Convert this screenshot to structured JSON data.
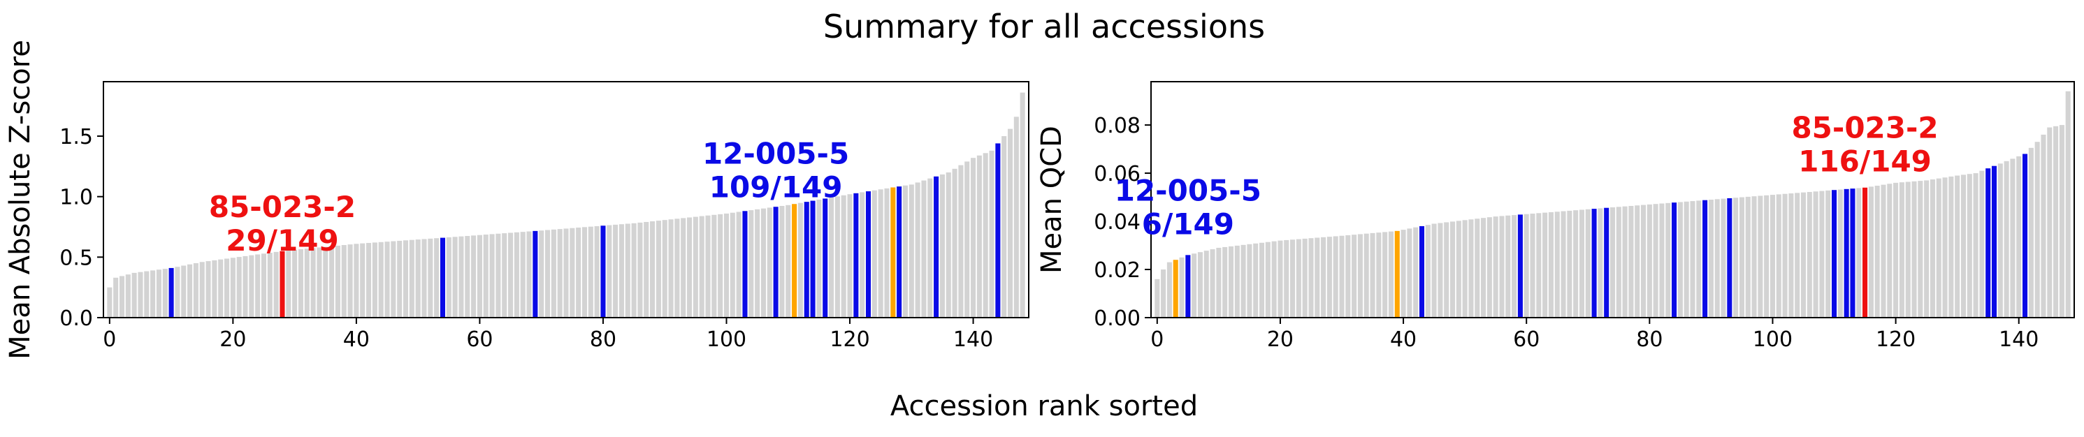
{
  "figure": {
    "title": "Summary for all accessions",
    "xlabel": "Accession rank sorted"
  },
  "colors": {
    "background_bar": "#d3d3d3",
    "highlight_red": "#ee1111",
    "highlight_blue": "#0a0ae6",
    "highlight_orange": "#ffa500",
    "axis": "#000000"
  },
  "chart_data": [
    {
      "type": "bar",
      "ylabel": "Mean Absolute Z-score",
      "xlim": [
        -1,
        149
      ],
      "ylim": [
        0,
        1.95
      ],
      "xticks": [
        0,
        20,
        40,
        60,
        80,
        100,
        120,
        140
      ],
      "yticks": [
        0.0,
        0.5,
        1.0,
        1.5
      ],
      "ytick_labels": [
        "0.0",
        "0.5",
        "1.0",
        "1.5"
      ],
      "n_bars": 149,
      "value_knots": [
        [
          0,
          0.25
        ],
        [
          1,
          0.33
        ],
        [
          4,
          0.37
        ],
        [
          10,
          0.41
        ],
        [
          15,
          0.46
        ],
        [
          28,
          0.55
        ],
        [
          40,
          0.61
        ],
        [
          54,
          0.66
        ],
        [
          70,
          0.72
        ],
        [
          85,
          0.78
        ],
        [
          100,
          0.86
        ],
        [
          110,
          0.93
        ],
        [
          120,
          1.02
        ],
        [
          130,
          1.1
        ],
        [
          136,
          1.2
        ],
        [
          140,
          1.32
        ],
        [
          143,
          1.38
        ],
        [
          145,
          1.5
        ],
        [
          146,
          1.56
        ],
        [
          147,
          1.66
        ],
        [
          148,
          1.86
        ]
      ],
      "highlights": [
        {
          "index": 28,
          "color": "red"
        },
        {
          "index": 10,
          "color": "blue"
        },
        {
          "index": 54,
          "color": "blue"
        },
        {
          "index": 69,
          "color": "blue"
        },
        {
          "index": 80,
          "color": "blue"
        },
        {
          "index": 103,
          "color": "blue"
        },
        {
          "index": 108,
          "color": "blue"
        },
        {
          "index": 111,
          "color": "orange"
        },
        {
          "index": 113,
          "color": "blue"
        },
        {
          "index": 114,
          "color": "blue"
        },
        {
          "index": 116,
          "color": "blue"
        },
        {
          "index": 121,
          "color": "blue"
        },
        {
          "index": 123,
          "color": "blue"
        },
        {
          "index": 127,
          "color": "orange"
        },
        {
          "index": 128,
          "color": "blue"
        },
        {
          "index": 134,
          "color": "blue"
        },
        {
          "index": 144,
          "color": "blue"
        }
      ],
      "annotations": [
        {
          "line1": "85-023-2",
          "line2": "29/149",
          "color": "red",
          "x": 28,
          "y": 0.6
        },
        {
          "line1": "12-005-5",
          "line2": "109/149",
          "color": "blue",
          "x": 108,
          "y": 1.04
        }
      ]
    },
    {
      "type": "bar",
      "ylabel": "Mean QCD",
      "xlim": [
        -1,
        149
      ],
      "ylim": [
        0,
        0.098
      ],
      "xticks": [
        0,
        20,
        40,
        60,
        80,
        100,
        120,
        140
      ],
      "yticks": [
        0.0,
        0.02,
        0.04,
        0.06,
        0.08
      ],
      "ytick_labels": [
        "0.00",
        "0.02",
        "0.04",
        "0.06",
        "0.08"
      ],
      "n_bars": 149,
      "value_knots": [
        [
          0,
          0.016
        ],
        [
          1,
          0.02
        ],
        [
          2,
          0.023
        ],
        [
          3,
          0.024
        ],
        [
          5,
          0.026
        ],
        [
          10,
          0.029
        ],
        [
          20,
          0.032
        ],
        [
          30,
          0.034
        ],
        [
          39,
          0.036
        ],
        [
          45,
          0.039
        ],
        [
          55,
          0.042
        ],
        [
          60,
          0.043
        ],
        [
          70,
          0.045
        ],
        [
          80,
          0.047
        ],
        [
          90,
          0.049
        ],
        [
          100,
          0.051
        ],
        [
          110,
          0.053
        ],
        [
          115,
          0.054
        ],
        [
          120,
          0.056
        ],
        [
          125,
          0.057
        ],
        [
          130,
          0.059
        ],
        [
          133,
          0.06
        ],
        [
          135,
          0.062
        ],
        [
          138,
          0.065
        ],
        [
          141,
          0.068
        ],
        [
          143,
          0.073
        ],
        [
          145,
          0.079
        ],
        [
          147,
          0.08
        ],
        [
          148,
          0.094
        ]
      ],
      "highlights": [
        {
          "index": 3,
          "color": "orange"
        },
        {
          "index": 5,
          "color": "blue"
        },
        {
          "index": 39,
          "color": "orange"
        },
        {
          "index": 43,
          "color": "blue"
        },
        {
          "index": 59,
          "color": "blue"
        },
        {
          "index": 71,
          "color": "blue"
        },
        {
          "index": 73,
          "color": "blue"
        },
        {
          "index": 84,
          "color": "blue"
        },
        {
          "index": 89,
          "color": "blue"
        },
        {
          "index": 93,
          "color": "blue"
        },
        {
          "index": 110,
          "color": "blue"
        },
        {
          "index": 112,
          "color": "blue"
        },
        {
          "index": 113,
          "color": "blue"
        },
        {
          "index": 115,
          "color": "red"
        },
        {
          "index": 135,
          "color": "blue"
        },
        {
          "index": 136,
          "color": "blue"
        },
        {
          "index": 141,
          "color": "blue"
        }
      ],
      "annotations": [
        {
          "line1": "12-005-5",
          "line2": "6/149",
          "color": "blue",
          "x": 5,
          "y": 0.037
        },
        {
          "line1": "85-023-2",
          "line2": "116/149",
          "color": "red",
          "x": 115,
          "y": 0.063
        }
      ]
    }
  ]
}
